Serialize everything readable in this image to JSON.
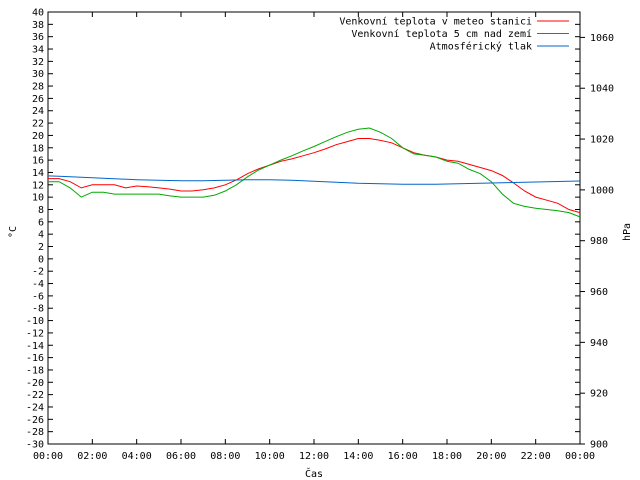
{
  "chart_data": {
    "type": "line",
    "title": "",
    "xlabel": "Čas",
    "ylabel": "°C",
    "y2label": "hPa",
    "xlim": [
      0,
      24
    ],
    "ylim": [
      -30,
      40
    ],
    "y2lim": [
      900,
      1070
    ],
    "x_ticks": [
      "00:00",
      "02:00",
      "04:00",
      "06:00",
      "08:00",
      "10:00",
      "12:00",
      "14:00",
      "16:00",
      "18:00",
      "20:00",
      "22:00",
      "00:00"
    ],
    "y_ticks": [
      -30,
      -28,
      -26,
      -24,
      -22,
      -20,
      -18,
      -16,
      -14,
      -12,
      -10,
      -8,
      -6,
      -4,
      -2,
      0,
      2,
      4,
      6,
      8,
      10,
      12,
      14,
      16,
      18,
      20,
      22,
      24,
      26,
      28,
      30,
      32,
      34,
      36,
      38,
      40
    ],
    "y2_ticks": [
      900,
      920,
      940,
      960,
      980,
      1000,
      1020,
      1040,
      1060
    ],
    "grid": false,
    "legend_position": "top-right",
    "x": [
      0,
      0.5,
      1,
      1.5,
      2,
      2.5,
      3,
      3.5,
      4,
      4.5,
      5,
      5.5,
      6,
      6.5,
      7,
      7.5,
      8,
      8.5,
      9,
      9.5,
      10,
      10.5,
      11,
      11.5,
      12,
      12.5,
      13,
      13.5,
      14,
      14.5,
      15,
      15.5,
      16,
      16.5,
      17,
      17.5,
      18,
      18.5,
      19,
      19.5,
      20,
      20.5,
      21,
      21.5,
      22,
      22.5,
      23,
      23.5,
      24
    ],
    "series": [
      {
        "name": "Venkovní teplota v meteo stanici",
        "color": "#ff0000",
        "axis": "left",
        "values": [
          13,
          13,
          12.5,
          11.5,
          12,
          12,
          12,
          11.5,
          11.8,
          11.7,
          11.5,
          11.3,
          11,
          11,
          11.2,
          11.5,
          12,
          12.8,
          13.8,
          14.6,
          15.2,
          15.8,
          16.2,
          16.7,
          17.2,
          17.8,
          18.5,
          19,
          19.5,
          19.5,
          19.2,
          18.8,
          18,
          17.2,
          16.8,
          16.5,
          16,
          15.8,
          15.3,
          14.8,
          14.3,
          13.5,
          12.3,
          11,
          10,
          9.5,
          9,
          8,
          7.5
        ]
      },
      {
        "name": "Venkovní teplota 5 cm nad zemí",
        "color": "#00aa00",
        "axis": "left",
        "values": [
          12.5,
          12.5,
          11.5,
          10,
          10.8,
          10.8,
          10.5,
          10.5,
          10.5,
          10.5,
          10.5,
          10.2,
          10,
          10,
          10,
          10.3,
          11,
          12,
          13.3,
          14.4,
          15.2,
          16,
          16.7,
          17.5,
          18.2,
          19,
          19.8,
          20.5,
          21,
          21.2,
          20.5,
          19.5,
          18,
          17,
          16.8,
          16.5,
          15.8,
          15.5,
          14.5,
          13.8,
          12.5,
          10.5,
          9,
          8.5,
          8.2,
          8,
          7.8,
          7.5,
          6.8
        ]
      },
      {
        "name": "Atmosférický tlak",
        "color": "#0066cc",
        "axis": "right",
        "values": [
          1005.5,
          1005.4,
          1005.2,
          1005,
          1004.8,
          1004.6,
          1004.4,
          1004.2,
          1004,
          1003.9,
          1003.8,
          1003.7,
          1003.6,
          1003.6,
          1003.6,
          1003.7,
          1003.8,
          1003.9,
          1004,
          1004,
          1004,
          1003.9,
          1003.8,
          1003.6,
          1003.4,
          1003.2,
          1003,
          1002.8,
          1002.6,
          1002.5,
          1002.4,
          1002.3,
          1002.2,
          1002.2,
          1002.2,
          1002.2,
          1002.3,
          1002.4,
          1002.5,
          1002.6,
          1002.7,
          1002.8,
          1002.9,
          1003,
          1003.1,
          1003.2,
          1003.3,
          1003.4,
          1003.5
        ]
      }
    ]
  }
}
